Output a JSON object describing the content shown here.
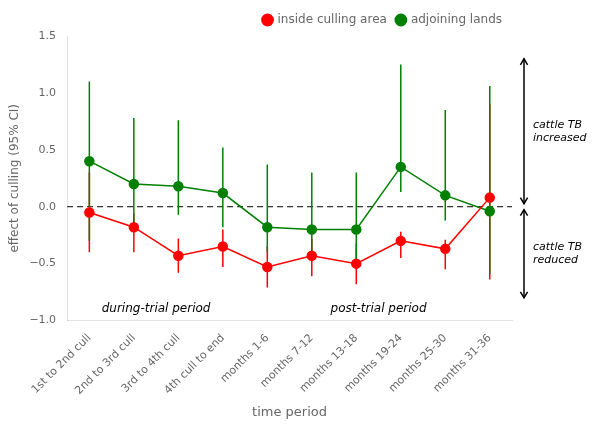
{
  "chart_data": {
    "type": "line",
    "xlabel": "time period",
    "ylabel": "effect of culling (95% CI)",
    "categories": [
      "1st to 2nd cull",
      "2nd to 3rd cull",
      "3rd to 4th cull",
      "4th cull to end",
      "months 1-6",
      "months 7-12",
      "months 13-18",
      "months 19-24",
      "months 25-30",
      "months 31-36"
    ],
    "series": [
      {
        "name": "inside culling area",
        "color": "#ff0000",
        "marker": "circle",
        "line_style": "solid",
        "values": [
          -0.05,
          -0.18,
          -0.43,
          -0.35,
          -0.53,
          -0.43,
          -0.5,
          -0.3,
          -0.37,
          0.08
        ],
        "err_low": [
          0.35,
          0.22,
          0.15,
          0.18,
          0.18,
          0.18,
          0.18,
          0.15,
          0.18,
          0.72
        ],
        "err_high": [
          0.35,
          0.12,
          0.15,
          0.15,
          0.18,
          0.15,
          0.18,
          0.08,
          0.08,
          0.82
        ]
      },
      {
        "name": "adjoining lands",
        "color": "#008000",
        "marker": "circle",
        "line_style": "solid",
        "values": [
          0.4,
          0.2,
          0.18,
          0.12,
          -0.18,
          -0.2,
          -0.2,
          0.35,
          0.1,
          -0.04
        ],
        "err_low": [
          0.7,
          0.38,
          0.25,
          0.3,
          0.22,
          0.28,
          0.32,
          0.22,
          0.22,
          0.55
        ],
        "err_high": [
          0.7,
          0.58,
          0.58,
          0.4,
          0.55,
          0.5,
          0.5,
          0.9,
          0.75,
          1.1
        ]
      }
    ],
    "ylim": [
      -1.0,
      1.5
    ],
    "yticks": [
      {
        "value": -1.0,
        "label": "−1.0"
      },
      {
        "value": -0.5,
        "label": "−0.5"
      },
      {
        "value": 0.0,
        "label": "0.0"
      },
      {
        "value": 0.5,
        "label": "0.5"
      },
      {
        "value": 1.0,
        "label": "1.0"
      },
      {
        "value": 1.5,
        "label": "1.5"
      }
    ],
    "reference_lines": [
      {
        "y": 0,
        "line_style": "dashed",
        "color": "#000000"
      }
    ],
    "annotations": [
      "during-trial period",
      "post-trial period",
      "cattle TB\nincreased",
      "cattle TB\nreduced"
    ],
    "grid": false,
    "legend": "upper right"
  }
}
